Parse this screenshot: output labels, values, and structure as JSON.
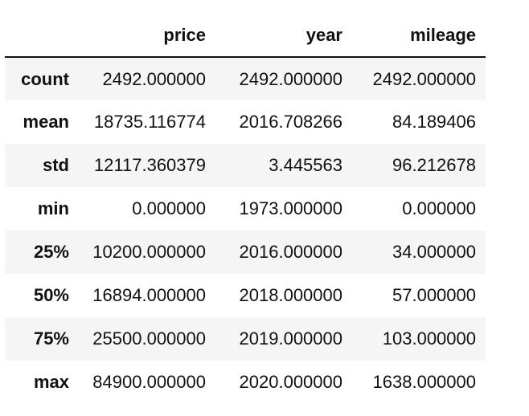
{
  "table": {
    "columns": [
      "",
      "price",
      "year",
      "mileage"
    ],
    "rows": [
      {
        "index": "count",
        "values": [
          "2492.000000",
          "2492.000000",
          "2492.000000"
        ]
      },
      {
        "index": "mean",
        "values": [
          "18735.116774",
          "2016.708266",
          "84.189406"
        ]
      },
      {
        "index": "std",
        "values": [
          "12117.360379",
          "3.445563",
          "96.212678"
        ]
      },
      {
        "index": "min",
        "values": [
          "0.000000",
          "1973.000000",
          "0.000000"
        ]
      },
      {
        "index": "25%",
        "values": [
          "10200.000000",
          "2016.000000",
          "34.000000"
        ]
      },
      {
        "index": "50%",
        "values": [
          "16894.000000",
          "2018.000000",
          "57.000000"
        ]
      },
      {
        "index": "75%",
        "values": [
          "25500.000000",
          "2019.000000",
          "103.000000"
        ]
      },
      {
        "index": "max",
        "values": [
          "84900.000000",
          "2020.000000",
          "1638.000000"
        ]
      }
    ]
  }
}
